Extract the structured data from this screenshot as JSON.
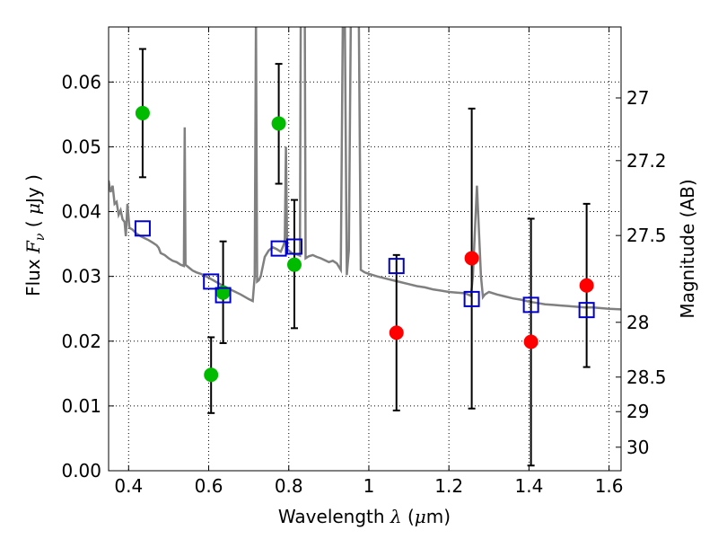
{
  "chart_data": {
    "type": "scatter",
    "xlabel_parts": [
      "Wavelength  ",
      "λ",
      " (",
      "μ",
      "m)"
    ],
    "ylabel_parts": [
      "Flux  ",
      "F",
      "ν",
      "  ( ",
      "μ",
      "Jy )"
    ],
    "y2label": "Magnitude (AB)",
    "xlim": [
      0.35,
      1.63
    ],
    "ylim": [
      0.0,
      0.0685
    ],
    "x_ticks": [
      0.4,
      0.6,
      0.8,
      1.0,
      1.2,
      1.4,
      1.6
    ],
    "x_tick_labels": [
      "0.4",
      "0.6",
      "0.8",
      "1",
      "1.2",
      "1.4",
      "1.6"
    ],
    "y_ticks": [
      0.0,
      0.01,
      0.02,
      0.03,
      0.04,
      0.05,
      0.06
    ],
    "y_tick_labels": [
      "0.00",
      "0.01",
      "0.02",
      "0.03",
      "0.04",
      "0.05",
      "0.06"
    ],
    "y2_ticks": [
      27,
      27.2,
      27.5,
      28,
      28.5,
      29,
      30
    ],
    "y2_tick_labels": [
      "27",
      "27.2",
      "27.5",
      "28",
      "28.5",
      "29",
      "30"
    ],
    "grid": true,
    "colors": {
      "green_points": "#00bb00",
      "red_points": "#ff0000",
      "model_boxes": "#0000cc",
      "model_spectrum": "#808080",
      "error_bars": "#000000"
    },
    "series": [
      {
        "marker": "green-circle",
        "points": [
          {
            "x": 0.435,
            "y": 0.0552,
            "ylo": 0.0453,
            "yhi": 0.0651
          },
          {
            "x": 0.606,
            "y": 0.0148,
            "ylo": 0.0089,
            "yhi": 0.0206
          },
          {
            "x": 0.636,
            "y": 0.0275,
            "ylo": 0.0197,
            "yhi": 0.0354
          },
          {
            "x": 0.775,
            "y": 0.0536,
            "ylo": 0.0443,
            "yhi": 0.0628
          },
          {
            "x": 0.814,
            "y": 0.0318,
            "ylo": 0.022,
            "yhi": 0.0418
          }
        ]
      },
      {
        "marker": "red-circle",
        "points": [
          {
            "x": 1.069,
            "y": 0.0213,
            "ylo": 0.0093,
            "yhi": 0.0333
          },
          {
            "x": 1.257,
            "y": 0.0328,
            "ylo": 0.0096,
            "yhi": 0.0559
          },
          {
            "x": 1.405,
            "y": 0.0199,
            "ylo": 0.0008,
            "yhi": 0.0389
          },
          {
            "x": 1.544,
            "y": 0.0286,
            "ylo": 0.016,
            "yhi": 0.0412
          }
        ]
      },
      {
        "marker": "blue-open-square",
        "points": [
          {
            "x": 0.435,
            "y": 0.0374
          },
          {
            "x": 0.606,
            "y": 0.0292
          },
          {
            "x": 0.636,
            "y": 0.0271
          },
          {
            "x": 0.775,
            "y": 0.0343
          },
          {
            "x": 0.814,
            "y": 0.0346
          },
          {
            "x": 1.069,
            "y": 0.0316
          },
          {
            "x": 1.257,
            "y": 0.0265
          },
          {
            "x": 1.405,
            "y": 0.0256
          },
          {
            "x": 1.544,
            "y": 0.0248
          }
        ]
      }
    ],
    "model_spectrum": [
      [
        0.35,
        0.0448
      ],
      [
        0.355,
        0.043
      ],
      [
        0.36,
        0.044
      ],
      [
        0.365,
        0.0412
      ],
      [
        0.37,
        0.0415
      ],
      [
        0.375,
        0.0395
      ],
      [
        0.38,
        0.0402
      ],
      [
        0.385,
        0.0388
      ],
      [
        0.39,
        0.0384
      ],
      [
        0.393,
        0.0362
      ],
      [
        0.397,
        0.0412
      ],
      [
        0.402,
        0.0375
      ],
      [
        0.41,
        0.0372
      ],
      [
        0.42,
        0.0366
      ],
      [
        0.43,
        0.0362
      ],
      [
        0.44,
        0.0359
      ],
      [
        0.45,
        0.0356
      ],
      [
        0.46,
        0.0352
      ],
      [
        0.47,
        0.0348
      ],
      [
        0.475,
        0.0344
      ],
      [
        0.48,
        0.0336
      ],
      [
        0.49,
        0.0333
      ],
      [
        0.5,
        0.0328
      ],
      [
        0.51,
        0.0324
      ],
      [
        0.52,
        0.0322
      ],
      [
        0.53,
        0.0318
      ],
      [
        0.538,
        0.0316
      ],
      [
        0.54,
        0.053
      ],
      [
        0.542,
        0.0318
      ],
      [
        0.55,
        0.0314
      ],
      [
        0.56,
        0.0309
      ],
      [
        0.57,
        0.0306
      ],
      [
        0.58,
        0.0304
      ],
      [
        0.59,
        0.0301
      ],
      [
        0.6,
        0.0298
      ],
      [
        0.62,
        0.0291
      ],
      [
        0.64,
        0.0284
      ],
      [
        0.66,
        0.0278
      ],
      [
        0.68,
        0.0272
      ],
      [
        0.7,
        0.0265
      ],
      [
        0.71,
        0.0262
      ],
      [
        0.715,
        0.03
      ],
      [
        0.718,
        0.07
      ],
      [
        0.721,
        0.0292
      ],
      [
        0.725,
        0.0294
      ],
      [
        0.73,
        0.03
      ],
      [
        0.74,
        0.033
      ],
      [
        0.75,
        0.034
      ],
      [
        0.76,
        0.0345
      ],
      [
        0.77,
        0.0342
      ],
      [
        0.78,
        0.0338
      ],
      [
        0.787,
        0.0348
      ],
      [
        0.79,
        0.0355
      ],
      [
        0.793,
        0.05
      ],
      [
        0.796,
        0.0342
      ],
      [
        0.8,
        0.034
      ],
      [
        0.81,
        0.0335
      ],
      [
        0.82,
        0.0334
      ],
      [
        0.828,
        0.0332
      ],
      [
        0.83,
        0.07
      ],
      [
        0.84,
        0.07
      ],
      [
        0.842,
        0.0328
      ],
      [
        0.85,
        0.0331
      ],
      [
        0.86,
        0.0333
      ],
      [
        0.87,
        0.033
      ],
      [
        0.88,
        0.0328
      ],
      [
        0.89,
        0.0325
      ],
      [
        0.9,
        0.0322
      ],
      [
        0.91,
        0.0324
      ],
      [
        0.92,
        0.032
      ],
      [
        0.93,
        0.031
      ],
      [
        0.935,
        0.07
      ],
      [
        0.94,
        0.07
      ],
      [
        0.945,
        0.0302
      ],
      [
        0.95,
        0.034
      ],
      [
        0.955,
        0.07
      ],
      [
        0.96,
        0.07
      ],
      [
        0.965,
        0.07
      ],
      [
        0.97,
        0.07
      ],
      [
        0.975,
        0.07
      ],
      [
        0.98,
        0.031
      ],
      [
        0.99,
        0.0306
      ],
      [
        1.0,
        0.0304
      ],
      [
        1.02,
        0.03
      ],
      [
        1.04,
        0.0297
      ],
      [
        1.06,
        0.0294
      ],
      [
        1.08,
        0.0291
      ],
      [
        1.1,
        0.0288
      ],
      [
        1.12,
        0.0285
      ],
      [
        1.14,
        0.0283
      ],
      [
        1.16,
        0.028
      ],
      [
        1.18,
        0.0278
      ],
      [
        1.2,
        0.0276
      ],
      [
        1.22,
        0.0275
      ],
      [
        1.24,
        0.0274
      ],
      [
        1.255,
        0.027
      ],
      [
        1.26,
        0.03
      ],
      [
        1.27,
        0.044
      ],
      [
        1.28,
        0.03
      ],
      [
        1.285,
        0.0268
      ],
      [
        1.29,
        0.0272
      ],
      [
        1.3,
        0.0276
      ],
      [
        1.32,
        0.0272
      ],
      [
        1.34,
        0.0269
      ],
      [
        1.36,
        0.0266
      ],
      [
        1.38,
        0.0264
      ],
      [
        1.4,
        0.0261
      ],
      [
        1.42,
        0.0259
      ],
      [
        1.44,
        0.0257
      ],
      [
        1.46,
        0.0256
      ],
      [
        1.48,
        0.0255
      ],
      [
        1.5,
        0.0254
      ],
      [
        1.52,
        0.0253
      ],
      [
        1.54,
        0.0252
      ],
      [
        1.56,
        0.0252
      ],
      [
        1.58,
        0.0251
      ],
      [
        1.6,
        0.025
      ],
      [
        1.63,
        0.0249
      ]
    ]
  }
}
